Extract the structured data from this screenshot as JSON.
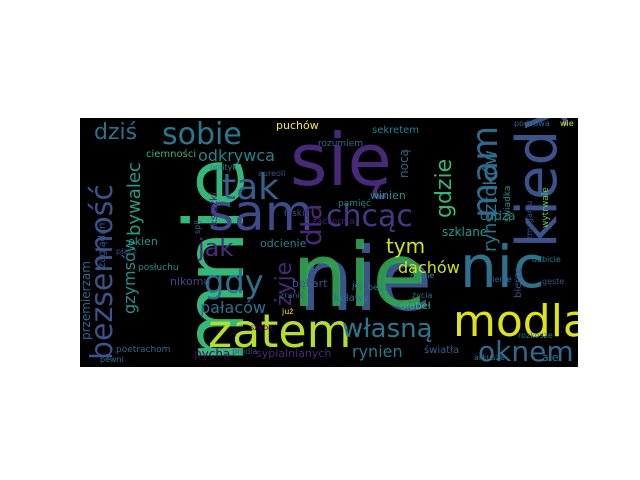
{
  "words": [
    {
      "text": "nie",
      "color": "#3b528b"
    },
    {
      "text": "nie",
      "color": "#31a354"
    },
    {
      "text": "mnie",
      "color": "#35b779"
    },
    {
      "text": "się",
      "color": "#482878"
    },
    {
      "text": "sam",
      "color": "#3e4a89"
    },
    {
      "text": "zatem",
      "color": "#b5de2b"
    },
    {
      "text": "nic",
      "color": "#2c728e"
    },
    {
      "text": "modlą",
      "color": "#dde318"
    },
    {
      "text": "kiedy",
      "color": "#3b528b"
    },
    {
      "text": "bezsenność",
      "color": "#3b528b"
    },
    {
      "text": "mam",
      "color": "#31688e"
    },
    {
      "text": "tak",
      "color": "#35608d"
    },
    {
      "text": "sobie",
      "color": "#2a788e"
    },
    {
      "text": "chcąc",
      "color": "#443983"
    },
    {
      "text": "dla",
      "color": "#482878"
    },
    {
      "text": "oknem",
      "color": "#31688e"
    },
    {
      "text": "gdy",
      "color": "#2c728e"
    },
    {
      "text": "własną",
      "color": "#2a788e"
    },
    {
      "text": "żyje",
      "color": "#482878"
    },
    {
      "text": "jak",
      "color": "#46307e"
    },
    {
      "text": "dziś",
      "color": "#2c728e"
    },
    {
      "text": "gdzie",
      "color": "#35b779"
    },
    {
      "text": "odkrywca",
      "color": "#26828e"
    },
    {
      "text": "rynsztoków",
      "color": "#2c728e"
    },
    {
      "text": "tym",
      "color": "#d8e219"
    },
    {
      "text": "dachów",
      "color": "#d0e11c"
    },
    {
      "text": "pałaców",
      "color": "#2c728e"
    },
    {
      "text": "bywalec",
      "color": "#1f9e89"
    },
    {
      "text": "gzymsów",
      "color": "#21918c"
    },
    {
      "text": "rynien",
      "color": "#2a788e"
    },
    {
      "text": "przemierzam",
      "color": "#31688e"
    },
    {
      "text": "pychą",
      "color": "#440154"
    },
    {
      "text": "okien",
      "color": "#1f9e89"
    },
    {
      "text": "puchów",
      "color": "#fde725"
    },
    {
      "text": "sekretem",
      "color": "#26828e"
    },
    {
      "text": "nocą",
      "color": "#31688e"
    },
    {
      "text": "winien",
      "color": "#21918c"
    },
    {
      "text": "cudza",
      "color": "#287d8e"
    },
    {
      "text": "szklane",
      "color": "#1f9e89"
    },
    {
      "text": "odcienie",
      "color": "#26828e"
    },
    {
      "text": "ciemności",
      "color": "#35b779"
    },
    {
      "text": "bękart",
      "color": "#3b528b"
    },
    {
      "text": "nikomu",
      "color": "#3e4a89"
    },
    {
      "text": "kulawy",
      "color": "#2c728e"
    },
    {
      "text": "diabeł",
      "color": "#35b779"
    },
    {
      "text": "bierze",
      "color": "#3b528b"
    },
    {
      "text": "sypialnianych",
      "color": "#482878"
    },
    {
      "text": "światła",
      "color": "#35608d"
    },
    {
      "text": "ale",
      "color": "#2a788e"
    },
    {
      "text": "łaski",
      "color": "#3e4a89"
    },
    {
      "text": "rozumiem",
      "color": "#31688e"
    },
    {
      "text": "zaczernia",
      "color": "#481f70"
    },
    {
      "text": "pamięć",
      "color": "#26828e"
    },
    {
      "text": "świadka",
      "color": "#21918c"
    },
    {
      "text": "wytrwale",
      "color": "#5ec962"
    },
    {
      "text": "zaglądam",
      "color": "#3b528b"
    },
    {
      "text": "posłuchu",
      "color": "#21918c"
    },
    {
      "text": "poetrachom",
      "color": "#31688e"
    },
    {
      "text": "jej",
      "color": "#2c728e"
    },
    {
      "text": "rozkosze",
      "color": "#2a788e"
    },
    {
      "text": "polityk",
      "color": "#287d8e"
    },
    {
      "text": "aureoli",
      "color": "#3b528b"
    },
    {
      "text": "spij",
      "color": "#31688e"
    },
    {
      "text": "książki",
      "color": "#482878"
    },
    {
      "text": "prodia",
      "color": "#3e4a89"
    },
    {
      "text": "zranić",
      "color": "#35608d"
    },
    {
      "text": "życia",
      "color": "#2c728e"
    },
    {
      "text": "arkusze",
      "color": "#2a788e"
    },
    {
      "text": "podsuwa",
      "color": "#31688e"
    },
    {
      "text": "odbicie",
      "color": "#26828e"
    },
    {
      "text": "gęste",
      "color": "#3b528b"
    },
    {
      "text": "szyba",
      "color": "#440154"
    },
    {
      "text": "wie",
      "color": "#d8e219"
    },
    {
      "text": "już",
      "color": "#fde725"
    },
    {
      "text": "bezą",
      "color": "#26828e"
    },
    {
      "text": "płacz",
      "color": "#3e4a89"
    },
    {
      "text": "pewni",
      "color": "#2c728e"
    },
    {
      "text": "nocne",
      "color": "#21918c"
    },
    {
      "text": "zmaganiu",
      "color": "#3b528b"
    },
    {
      "text": "cienie",
      "color": "#35608d"
    }
  ]
}
